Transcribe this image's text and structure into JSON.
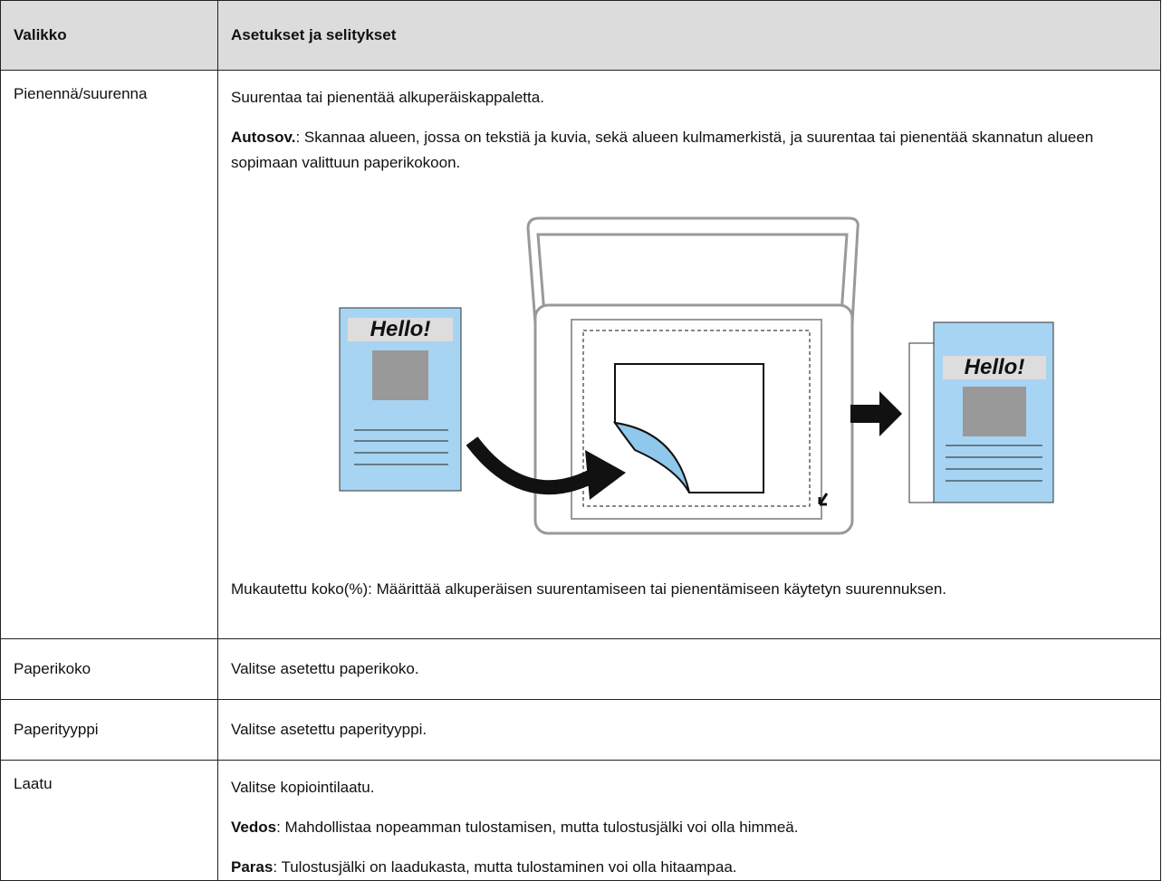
{
  "table": {
    "header": [
      "Valikko",
      "Asetukset ja selitykset"
    ],
    "rows": [
      {
        "menu": "Pienennä/suurenna",
        "paragraphs": [
          {
            "text": "Suurentaa tai pienentää alkuperäiskappaletta."
          },
          {
            "term": "Autosov.",
            "text": ": Skannaa alueen, jossa on tekstiä ja kuvia, sekä alueen kulmamerkistä, ja suurentaa tai pienentää skannatun alueen sopimaan valittuun paperikokoon."
          },
          {
            "text": "Mukautettu koko(%): Määrittää alkuperäisen suurentamiseen tai pienentämiseen käytetyn suurennuksen."
          }
        ]
      },
      {
        "menu": "Paperikoko",
        "paragraphs": [
          {
            "text": "Valitse asetettu paperikoko."
          }
        ]
      },
      {
        "menu": "Paperityyppi",
        "paragraphs": [
          {
            "text": "Valitse asetettu paperityyppi."
          }
        ]
      },
      {
        "menu": "Laatu",
        "paragraphs": [
          {
            "text": "Valitse kopiointilaatu."
          },
          {
            "term": "Vedos",
            "text": ": Mahdollistaa nopeamman tulostamisen, mutta tulostusjälki voi olla himmeä."
          },
          {
            "term": "Paras",
            "text": ": Tulostusjälki on laadukasta, mutta tulostaminen voi olla hitaampaa."
          }
        ]
      }
    ]
  },
  "illustration": {
    "labels": [
      "Hello!",
      "Hello!"
    ]
  }
}
